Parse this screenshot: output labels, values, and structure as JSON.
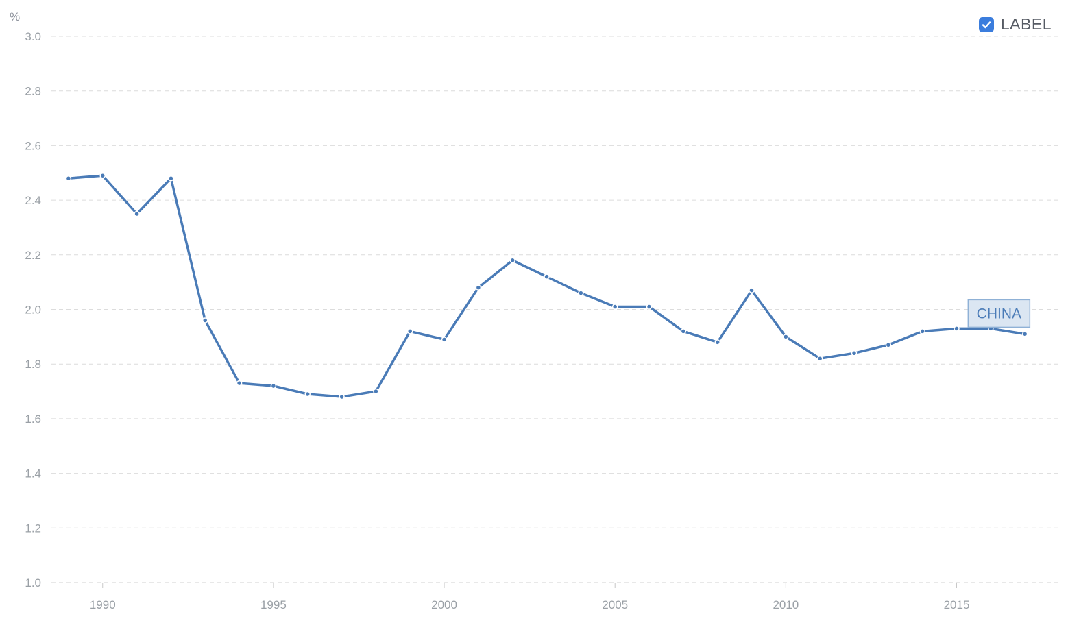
{
  "label_toggle": {
    "text": "LABEL",
    "checked": true,
    "icon": "checkmark-icon"
  },
  "chart_data": {
    "type": "line",
    "unit_label": "%",
    "ylim": [
      1.0,
      3.0
    ],
    "y_ticks": [
      "1.0",
      "1.2",
      "1.4",
      "1.6",
      "1.8",
      "2.0",
      "2.2",
      "2.4",
      "2.6",
      "2.8",
      "3.0"
    ],
    "x_ticks": [
      "1990",
      "1995",
      "2000",
      "2005",
      "2010",
      "2015"
    ],
    "xlim": [
      1988.5,
      2018.0
    ],
    "grid": true,
    "series": [
      {
        "name": "CHINA",
        "color": "#4a7bb7",
        "x": [
          1989,
          1990,
          1991,
          1992,
          1993,
          1994,
          1995,
          1996,
          1997,
          1998,
          1999,
          2000,
          2001,
          2002,
          2003,
          2004,
          2005,
          2006,
          2007,
          2008,
          2009,
          2010,
          2011,
          2012,
          2013,
          2014,
          2015,
          2016,
          2017
        ],
        "values": [
          2.48,
          2.49,
          2.35,
          2.48,
          1.96,
          1.73,
          1.72,
          1.69,
          1.68,
          1.7,
          1.92,
          1.89,
          2.08,
          2.18,
          2.12,
          2.06,
          2.01,
          2.01,
          1.92,
          1.88,
          2.07,
          1.9,
          1.82,
          1.84,
          1.87,
          1.92,
          1.93,
          1.93,
          1.91
        ]
      }
    ]
  }
}
